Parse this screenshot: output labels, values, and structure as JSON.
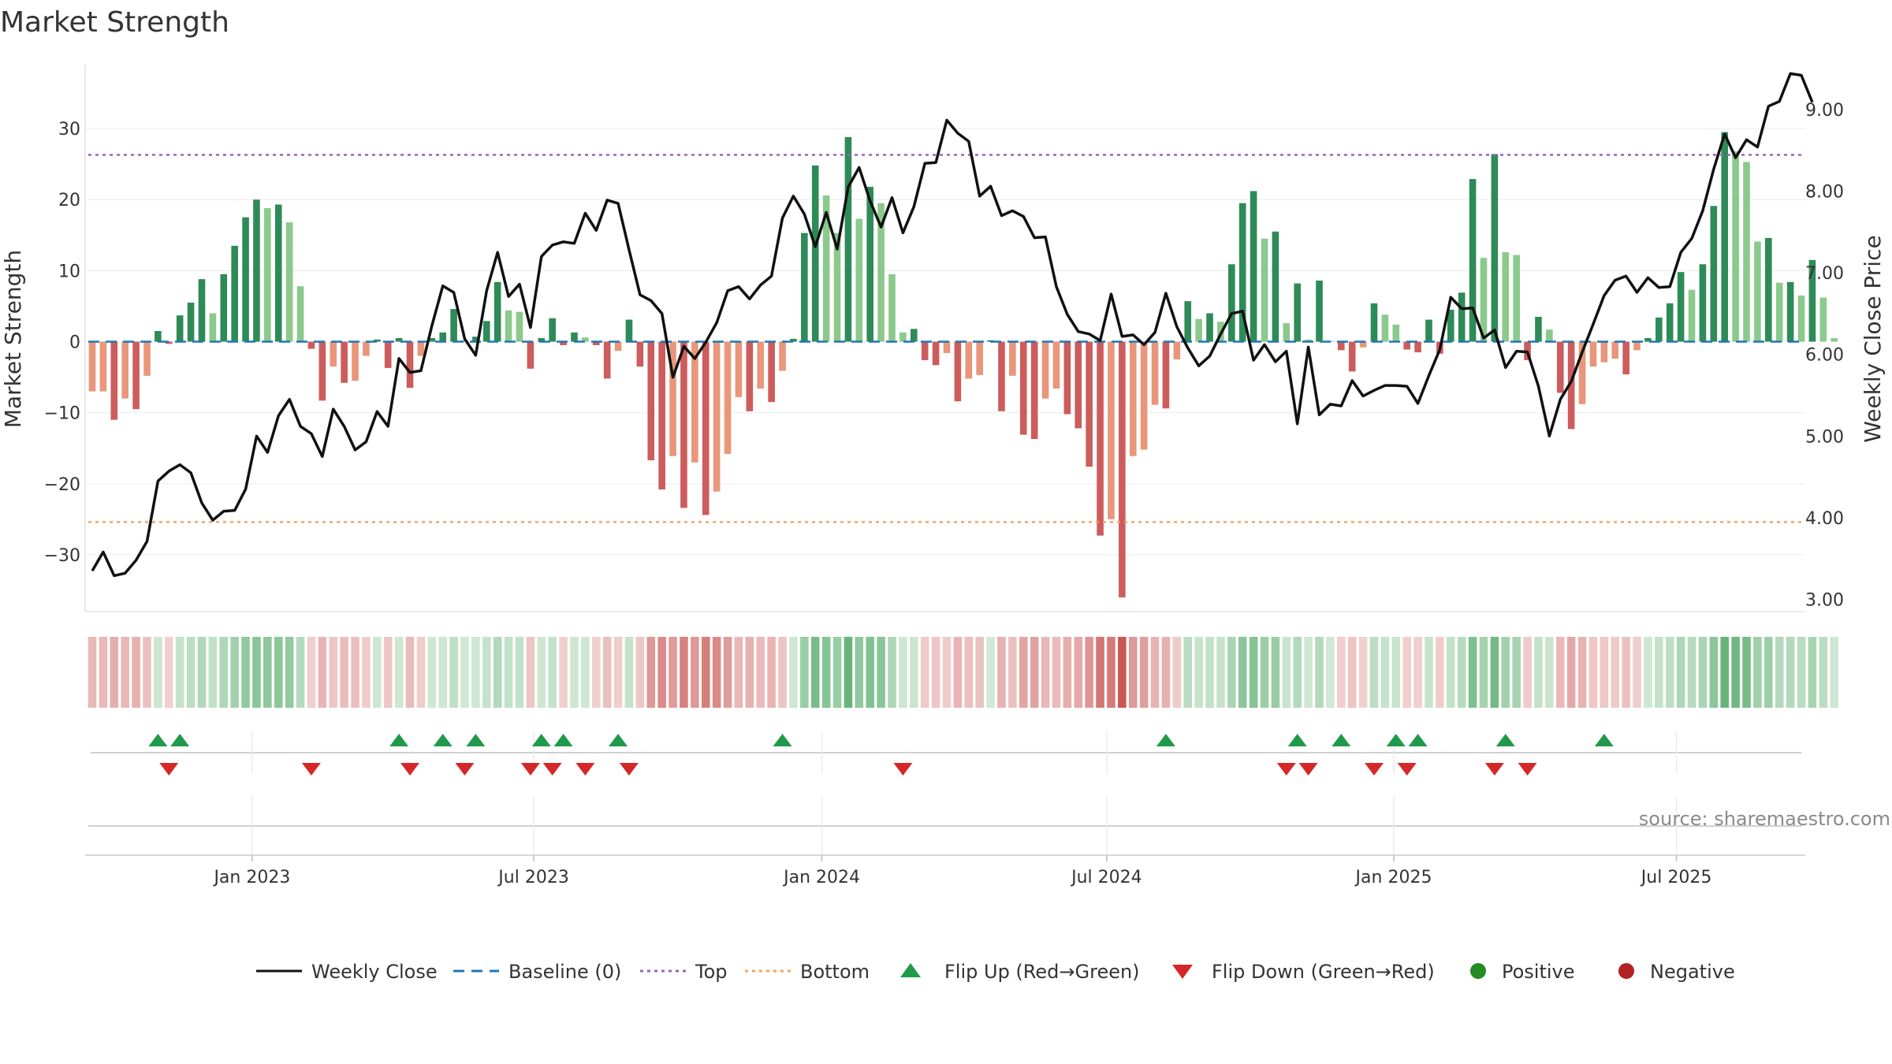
{
  "chart_data": {
    "type": "bar",
    "title": "Market Strength",
    "ylabel": "Market Strength",
    "y2label": "Weekly Close Price",
    "ylim": [
      -38,
      39
    ],
    "y2lim": [
      2.85,
      9.55
    ],
    "y_ticks": [
      30,
      20,
      10,
      0,
      -10,
      -20,
      -30
    ],
    "y_tick_labels": [
      "30",
      "20",
      "10",
      "0",
      "−10",
      "−20",
      "−30"
    ],
    "y2_ticks": [
      9.0,
      8.0,
      7.0,
      6.0,
      5.0,
      4.0,
      3.0
    ],
    "y2_tick_labels": [
      "9.00",
      "8.00",
      "7.00",
      "6.00",
      "5.00",
      "4.00",
      "3.00"
    ],
    "top_level": 26.3,
    "bottom_level": -25.4,
    "baseline": 0,
    "x_tick_labels": [
      "Jan 2023",
      "Jul 2023",
      "Jan 2024",
      "Jul 2024",
      "Jan 2025",
      "Jul 2025"
    ],
    "x_tick_weeks": [
      14.6,
      40.3,
      66.6,
      92.6,
      118.8,
      144.6
    ],
    "weeks": 157,
    "strength": [
      -7,
      -7,
      -11,
      -8,
      -9.5,
      -4.8,
      1.5,
      -0.3,
      3.7,
      5.5,
      8.8,
      4,
      9.5,
      13.5,
      17.5,
      20,
      18.8,
      19.3,
      16.8,
      7.8,
      -1,
      -8.3,
      -3.5,
      -5.8,
      -5.5,
      -2,
      0.3,
      -3.7,
      0.5,
      -6.5,
      -2,
      0.5,
      1.3,
      4.6,
      0.2,
      0.7,
      2.9,
      8.4,
      4.4,
      4.2,
      -3.8,
      0.5,
      3.3,
      -0.5,
      1.3,
      0.6,
      -0.5,
      -5.2,
      -1.3,
      3.1,
      -3.5,
      -16.7,
      -20.8,
      -16.1,
      -23.4,
      -17,
      -24.4,
      -21.1,
      -15.8,
      -7.8,
      -9.8,
      -6.6,
      -8.5,
      -4.1,
      0.4,
      15.3,
      24.8,
      20.6,
      15.3,
      28.8,
      17.3,
      21.8,
      19.5,
      9.5,
      1.3,
      1.8,
      -2.6,
      -3.3,
      -1.6,
      -8.4,
      -5.2,
      -4.7,
      0.2,
      -9.8,
      -4.8,
      -13.1,
      -13.7,
      -8,
      -6.6,
      -10.2,
      -12.2,
      -17.6,
      -27.3,
      -25,
      -36,
      -16.1,
      -15.2,
      -8.9,
      -9.4,
      -2.5,
      5.7,
      3.2,
      4,
      2.8,
      10.9,
      19.5,
      21.2,
      14.5,
      15.5,
      2.6,
      8.2,
      0.3,
      8.6,
      0.1,
      -1.2,
      -4.2,
      -0.8,
      5.4,
      3.8,
      2.4,
      -1.1,
      -1.5,
      3.1,
      -1.7,
      4.5,
      6.9,
      22.9,
      11.8,
      26.4,
      12.6,
      12.2,
      -2.6,
      3.5,
      1.7,
      -7.2,
      -12.3,
      -8.8,
      -3.5,
      -2.9,
      -2.4,
      -4.6,
      -1.2,
      0.5,
      3.4,
      5.4,
      9.8,
      7.3,
      10.9,
      19.1,
      29.5,
      26.8,
      25.3,
      14.1,
      14.6,
      8.3,
      8.4,
      6.5,
      11.5,
      6.2,
      0.5
    ],
    "close": [
      3.35,
      3.58,
      3.29,
      3.32,
      3.48,
      3.71,
      4.45,
      4.57,
      4.65,
      4.55,
      4.18,
      3.97,
      4.08,
      4.09,
      4.35,
      5.0,
      4.8,
      5.25,
      5.45,
      5.12,
      5.03,
      4.75,
      5.33,
      5.12,
      4.83,
      4.93,
      5.3,
      5.12,
      5.95,
      5.78,
      5.8,
      6.35,
      6.84,
      6.76,
      6.19,
      5.99,
      6.78,
      7.25,
      6.71,
      6.86,
      6.33,
      7.2,
      7.34,
      7.38,
      7.36,
      7.73,
      7.52,
      7.89,
      7.85,
      7.28,
      6.73,
      6.66,
      6.5,
      5.72,
      6.1,
      5.95,
      6.15,
      6.39,
      6.78,
      6.83,
      6.68,
      6.85,
      6.96,
      7.67,
      7.94,
      7.72,
      7.32,
      7.74,
      7.29,
      8.05,
      8.29,
      7.88,
      7.56,
      7.92,
      7.49,
      7.81,
      8.34,
      8.35,
      8.87,
      8.71,
      8.61,
      7.94,
      8.06,
      7.7,
      7.76,
      7.69,
      7.43,
      7.44,
      6.83,
      6.49,
      6.28,
      6.25,
      6.17,
      6.74,
      6.22,
      6.24,
      6.12,
      6.27,
      6.75,
      6.34,
      6.08,
      5.86,
      5.98,
      6.25,
      6.5,
      6.53,
      5.93,
      6.12,
      5.91,
      6.04,
      5.15,
      6.09,
      5.26,
      5.39,
      5.37,
      5.68,
      5.49,
      5.56,
      5.62,
      5.62,
      5.61,
      5.4,
      5.74,
      6.06,
      6.7,
      6.56,
      6.57,
      6.2,
      6.3,
      5.84,
      6.04,
      6.03,
      5.61,
      5.0,
      5.45,
      5.67,
      6.03,
      6.37,
      6.72,
      6.91,
      6.96,
      6.76,
      6.94,
      6.82,
      6.83,
      7.25,
      7.42,
      7.76,
      8.27,
      8.7,
      8.41,
      8.63,
      8.54,
      9.04,
      9.1,
      9.44,
      9.42,
      9.09
    ],
    "flip_up_weeks": [
      6,
      8,
      28,
      32,
      35,
      41,
      43,
      48,
      63,
      98,
      110,
      114,
      119,
      121,
      129,
      138
    ],
    "flip_down_weeks": [
      7,
      20,
      29,
      34,
      40,
      42,
      45,
      49,
      74,
      109,
      111,
      117,
      120,
      128,
      131
    ],
    "series": [
      {
        "name": "Weekly Close",
        "color": "#111111"
      },
      {
        "name": "Market Strength",
        "positive_color": "#2e8b57",
        "negative_color": "#cd5c5c"
      }
    ],
    "legend": [
      {
        "label": "Weekly Close",
        "symbol": "line",
        "color": "#111111"
      },
      {
        "label": "Baseline (0)",
        "symbol": "dashline",
        "color": "#1f77b4"
      },
      {
        "label": "Top",
        "symbol": "dotline",
        "color": "#9467bd"
      },
      {
        "label": "Bottom",
        "symbol": "dotline",
        "color": "#f4a460"
      },
      {
        "label": "Flip Up (Red→Green)",
        "symbol": "triangle-up",
        "color": "#1f9a4a"
      },
      {
        "label": "Flip Down (Green→Red)",
        "symbol": "triangle-down",
        "color": "#d62728"
      },
      {
        "label": "Positive",
        "symbol": "dot",
        "color": "#228b22"
      },
      {
        "label": "Negative",
        "symbol": "dot",
        "color": "#b22222"
      }
    ],
    "legend_position": "bottom-center",
    "source": "source: sharemaestro.com"
  }
}
